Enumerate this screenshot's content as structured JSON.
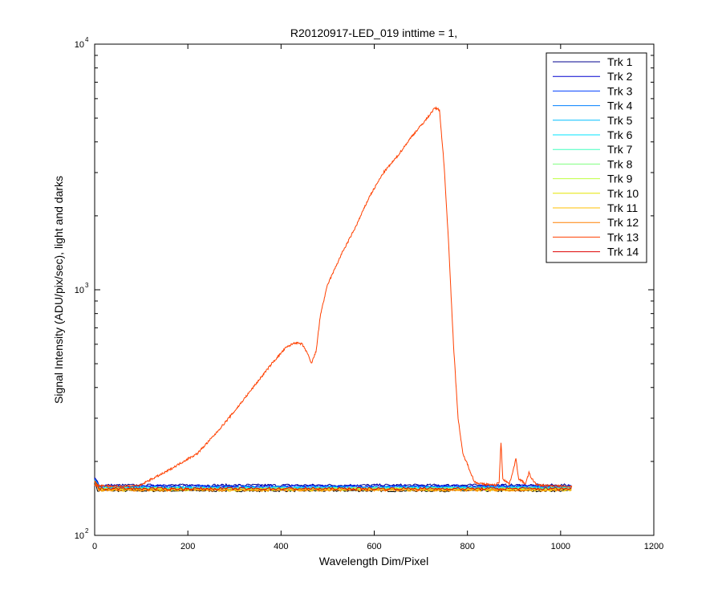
{
  "chart_data": {
    "type": "line",
    "title": "R20120917-LED_019 inttime = 1,",
    "xlabel": "Wavelength Dim/Pixel",
    "ylabel": "Signal Intensity (ADU/pix/sec), light and darks",
    "xlim": [
      0,
      1200
    ],
    "ylim": [
      100,
      10000
    ],
    "yscale": "log",
    "x_ticks": [
      "0",
      "200",
      "400",
      "600",
      "800",
      "1000",
      "1200"
    ],
    "x_tick_values": [
      0,
      200,
      400,
      600,
      800,
      1000,
      1200
    ],
    "y_ticks": [
      {
        "base": "10",
        "exp": "2",
        "value": 100
      },
      {
        "base": "10",
        "exp": "3",
        "value": 1000
      },
      {
        "base": "10",
        "exp": "4",
        "value": 10000
      }
    ],
    "grid": false,
    "legend_position": "top-right",
    "series": [
      {
        "name": "Trk 1",
        "color": "#00008f",
        "level": 160
      },
      {
        "name": "Trk 2",
        "color": "#0000cf",
        "level": 159
      },
      {
        "name": "Trk 3",
        "color": "#0040ff",
        "level": 158
      },
      {
        "name": "Trk 4",
        "color": "#0080ff",
        "level": 157
      },
      {
        "name": "Trk 5",
        "color": "#00bfff",
        "level": 156
      },
      {
        "name": "Trk 6",
        "color": "#00e5ff",
        "level": 156
      },
      {
        "name": "Trk 7",
        "color": "#40ffbf",
        "level": 155
      },
      {
        "name": "Trk 8",
        "color": "#80ff80",
        "level": 155
      },
      {
        "name": "Trk 9",
        "color": "#bfff40",
        "level": 154
      },
      {
        "name": "Trk 10",
        "color": "#e5e500",
        "level": 154
      },
      {
        "name": "Trk 11",
        "color": "#ffbf00",
        "level": 153
      },
      {
        "name": "Trk 12",
        "color": "#ff8000",
        "level": 153
      },
      {
        "name": "Trk 13",
        "color": "#ff4000",
        "level": 156
      },
      {
        "name": "Trk 14",
        "color": "#df0000",
        "level": 155
      }
    ],
    "dark_series_color": "#000000",
    "dark_level": 152,
    "x_end": 1024,
    "peak_series_index": 12,
    "peak_curve": [
      [
        0,
        160
      ],
      [
        50,
        158
      ],
      [
        100,
        160
      ],
      [
        110,
        165
      ],
      [
        150,
        180
      ],
      [
        200,
        205
      ],
      [
        220,
        215
      ],
      [
        260,
        260
      ],
      [
        300,
        320
      ],
      [
        340,
        400
      ],
      [
        380,
        500
      ],
      [
        410,
        580
      ],
      [
        430,
        610
      ],
      [
        445,
        600
      ],
      [
        455,
        560
      ],
      [
        465,
        500
      ],
      [
        475,
        560
      ],
      [
        485,
        800
      ],
      [
        500,
        1050
      ],
      [
        530,
        1400
      ],
      [
        560,
        1800
      ],
      [
        590,
        2400
      ],
      [
        620,
        3000
      ],
      [
        650,
        3500
      ],
      [
        680,
        4200
      ],
      [
        710,
        4900
      ],
      [
        730,
        5500
      ],
      [
        740,
        5400
      ],
      [
        750,
        3200
      ],
      [
        760,
        1500
      ],
      [
        770,
        600
      ],
      [
        780,
        300
      ],
      [
        790,
        215
      ],
      [
        800,
        195
      ],
      [
        815,
        165
      ],
      [
        830,
        162
      ],
      [
        860,
        160
      ],
      [
        868,
        165
      ],
      [
        872,
        240
      ],
      [
        876,
        170
      ],
      [
        890,
        162
      ],
      [
        900,
        190
      ],
      [
        904,
        205
      ],
      [
        910,
        170
      ],
      [
        925,
        162
      ],
      [
        932,
        180
      ],
      [
        938,
        170
      ],
      [
        950,
        160
      ],
      [
        1024,
        158
      ]
    ]
  }
}
